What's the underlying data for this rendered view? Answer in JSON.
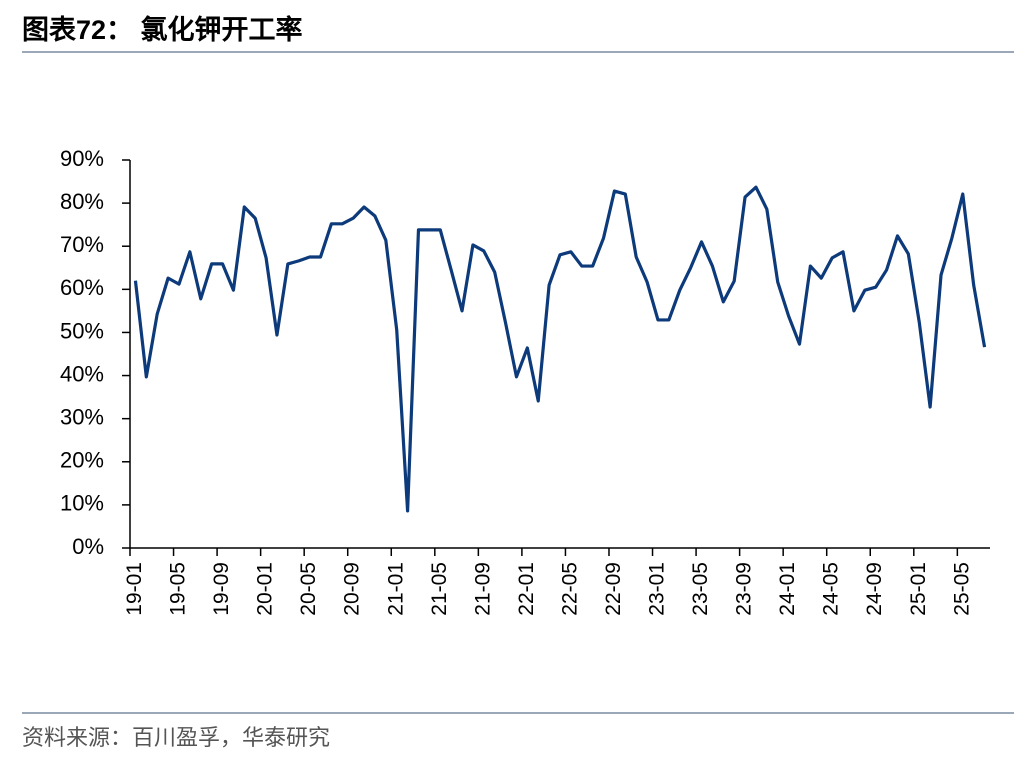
{
  "title": "图表72： 氯化钾开工率",
  "source": "资料来源：百川盈孚，华泰研究",
  "chart_data": {
    "type": "line",
    "categories": [
      "19-01",
      null,
      null,
      null,
      "19-05",
      null,
      null,
      null,
      "19-09",
      null,
      null,
      null,
      "20-01",
      null,
      null,
      null,
      "20-05",
      null,
      null,
      null,
      "20-09",
      null,
      null,
      null,
      "21-01",
      null,
      null,
      null,
      "21-05",
      null,
      null,
      null,
      "21-09",
      null,
      null,
      null,
      "22-01",
      null,
      null,
      null,
      "22-05",
      null,
      null,
      null,
      "22-09",
      null,
      null,
      null,
      "23-01",
      null,
      null,
      null,
      "23-05",
      null,
      null,
      null,
      "23-09",
      null,
      null,
      null,
      "24-01",
      null,
      null,
      null,
      "24-05",
      null,
      null,
      null,
      "24-09",
      null,
      null,
      null,
      "25-01",
      null,
      null,
      null,
      "25-05",
      null,
      null
    ],
    "series": [
      {
        "color": "#0d3a7a",
        "values": [
          62,
          39.7,
          54.3,
          62.6,
          61.2,
          68.7,
          57.8,
          65.9,
          65.9,
          59.8,
          79.1,
          76.5,
          67.3,
          49.4,
          65.9,
          66.6,
          67.5,
          67.5,
          75.2,
          75.2,
          76.5,
          79.1,
          77,
          71.4,
          50.6,
          8.6,
          73.8,
          73.8,
          73.8,
          64.5,
          55,
          70.3,
          68.9,
          64,
          52.2,
          39.7,
          46.4,
          34.1,
          61,
          68,
          68.7,
          65.4,
          65.4,
          71.9,
          82.8,
          82.1,
          67.5,
          61.7,
          52.9,
          52.9,
          59.8,
          65,
          71,
          65.4,
          57.1,
          61.9,
          81.4,
          83.7,
          78.6,
          61.7,
          53.8,
          47.3,
          65.4,
          62.6,
          67.3,
          68.7,
          55,
          59.8,
          60.5,
          64.5,
          72.4,
          68.2,
          52.4,
          32.7,
          63.3,
          71.9,
          82.1,
          61,
          46.6
        ]
      }
    ],
    "ylim": [
      0,
      90
    ],
    "yticks": [
      {
        "value": 0,
        "label": "0%"
      },
      {
        "value": 10,
        "label": "10%"
      },
      {
        "value": 20,
        "label": "20%"
      },
      {
        "value": 30,
        "label": "30%"
      },
      {
        "value": 40,
        "label": "40%"
      },
      {
        "value": 50,
        "label": "50%"
      },
      {
        "value": 60,
        "label": "60%"
      },
      {
        "value": 70,
        "label": "70%"
      },
      {
        "value": 80,
        "label": "80%"
      },
      {
        "value": 90,
        "label": "90%"
      }
    ]
  }
}
